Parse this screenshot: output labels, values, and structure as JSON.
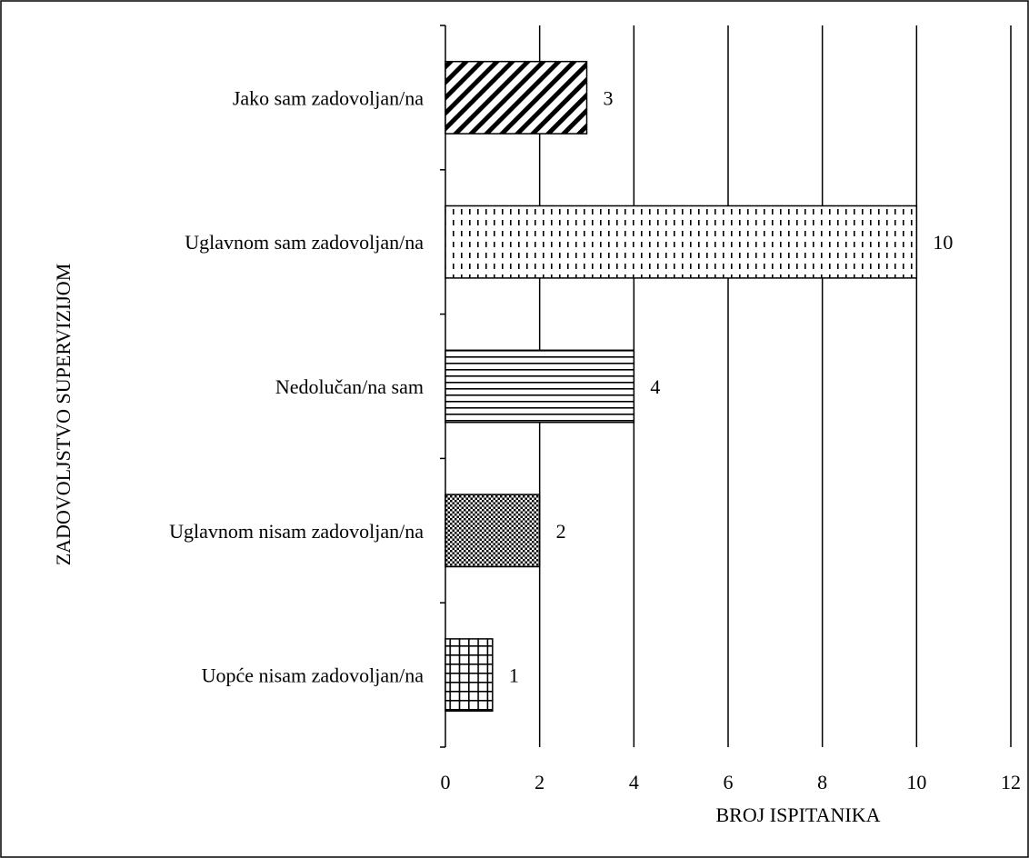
{
  "chart_data": {
    "type": "bar",
    "orientation": "horizontal",
    "categories": [
      "Jako sam zadovoljan/na",
      "Uglavnom sam zadovoljan/na",
      "Nedolučan/na sam",
      "Uglavnom nisam zadovoljan/na",
      "Uopće nisam zadovoljan/na"
    ],
    "values": [
      3,
      10,
      4,
      2,
      1
    ],
    "data_labels": [
      "3",
      "10",
      "4",
      "2",
      "1"
    ],
    "patterns": [
      "diagonal",
      "dashed-dots",
      "horizontal-lines",
      "checker",
      "grid"
    ],
    "title": "",
    "xlabel": "BROJ ISPITANIKA",
    "ylabel": "ZADOVOLJSTVO SUPERVIZIJOM",
    "xlim": [
      0,
      12
    ],
    "xticks": [
      "0",
      "2",
      "4",
      "6",
      "8",
      "10",
      "12"
    ],
    "grid": "vertical",
    "legend": "none",
    "colors": {
      "bar_fill": "#ffffff",
      "stroke": "#000000",
      "background": "#ffffff"
    }
  }
}
